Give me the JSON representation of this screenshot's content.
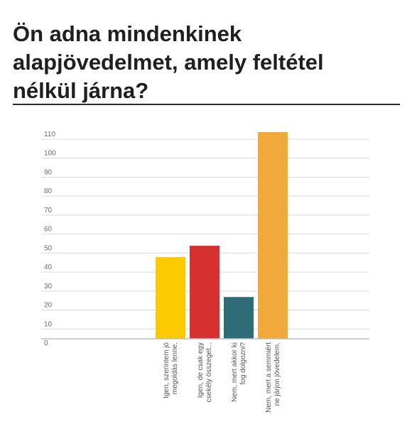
{
  "title": "Ön adna mindenkinek\nalapjövedelmet, amely feltétel\nnélkül járna?",
  "chart_data": {
    "type": "bar",
    "title": "Ön adna mindenkinek alapjövedelmet, amely feltétel nélkül járna?",
    "xlabel": "",
    "ylabel": "",
    "ylim": [
      0,
      110
    ],
    "yticks": [
      0,
      10,
      20,
      30,
      40,
      50,
      60,
      70,
      80,
      90,
      100,
      110
    ],
    "grid": true,
    "categories": [
      [
        "Igen, szerintem jó",
        "megoldás lenne."
      ],
      [
        "Igen, de csak egy",
        "csekély összeget..."
      ],
      [
        "Nem, mert akkor ki",
        "fog dolgozni?"
      ],
      [
        "Nem, mert a semmiért",
        "ne járjon jövedelem."
      ]
    ],
    "values": [
      43,
      49,
      22,
      111
    ],
    "colors": [
      "#fdc900",
      "#d63030",
      "#2e6d78",
      "#f2a93b"
    ]
  }
}
